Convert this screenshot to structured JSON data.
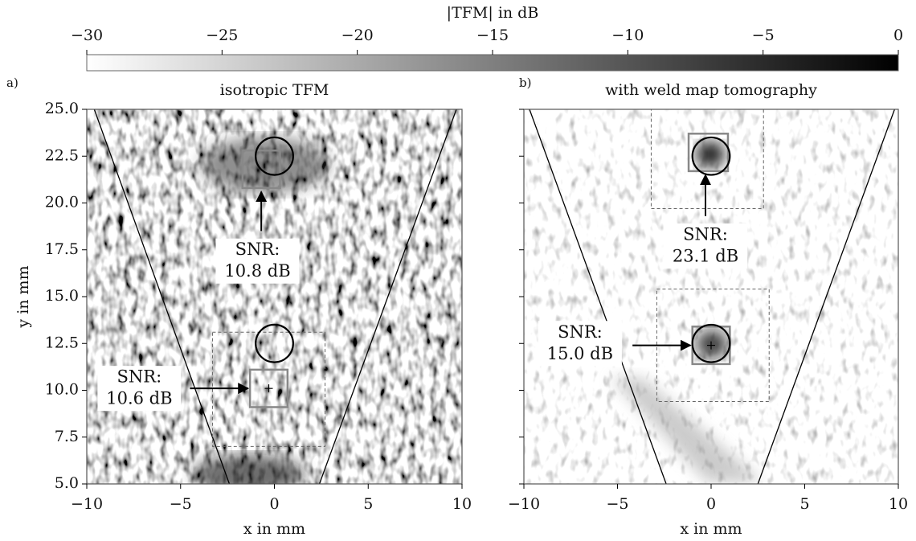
{
  "colorbar": {
    "label": "|TFM| in dB",
    "lim": [
      -30,
      0
    ],
    "ticks": [
      {
        "value": -30,
        "label": "−30"
      },
      {
        "value": -25,
        "label": "−25"
      },
      {
        "value": -20,
        "label": "−20"
      },
      {
        "value": -15,
        "label": "−15"
      },
      {
        "value": -10,
        "label": "−10"
      },
      {
        "value": -5,
        "label": "−5"
      },
      0
    ]
  },
  "chart_data": [
    {
      "type": "image",
      "label": "a)",
      "title": "isotropic TFM",
      "xlabel": "x in mm",
      "ylabel": "y in mm",
      "xlim": [
        -10,
        10
      ],
      "ylim": [
        5,
        25
      ],
      "xticks": [
        {
          "value": -10,
          "label": "−10"
        },
        {
          "value": -5,
          "label": "−5"
        },
        0,
        5,
        10
      ],
      "yticks": [
        {
          "value": 5,
          "label": "5.0"
        },
        {
          "value": 7.5,
          "label": "7.5"
        },
        {
          "value": 10,
          "label": "10.0"
        },
        {
          "value": 12.5,
          "label": "12.5"
        },
        {
          "value": 15,
          "label": "15.0"
        },
        {
          "value": 17.5,
          "label": "17.5"
        },
        {
          "value": 20,
          "label": "20.0"
        },
        {
          "value": 22.5,
          "label": "22.5"
        },
        {
          "value": 25,
          "label": "25.0"
        }
      ],
      "lines": [
        {
          "x": [
            -9.6,
            -2.4
          ],
          "y": [
            25,
            5
          ]
        },
        {
          "x": [
            9.7,
            2.4
          ],
          "y": [
            25,
            5
          ]
        }
      ],
      "circles": [
        {
          "x": 0,
          "y": 22.5,
          "r": 1
        },
        {
          "x": 0,
          "y": 12.5,
          "r": 1
        }
      ],
      "boxes": [
        {
          "x": [
            -3.3,
            2.7
          ],
          "y": [
            13.1,
            7.0
          ],
          "style": "dashed"
        },
        {
          "x": [
            -1.7,
            0.3
          ],
          "y": [
            22.8,
            20.8
          ],
          "style": "solid"
        },
        {
          "x": [
            -1.3,
            0.7
          ],
          "y": [
            11.1,
            9.1
          ],
          "style": "solid"
        }
      ],
      "markers": [
        {
          "x": -0.3,
          "y": 10.1
        }
      ],
      "annotations": [
        {
          "text": [
            "SNR:",
            "10.8 dB"
          ],
          "x": -0.9,
          "y": 16.9,
          "arrow": {
            "x": [
              -0.7,
              -0.7
            ],
            "y": [
              18.5,
              20.6
            ]
          }
        },
        {
          "text": [
            "SNR:",
            "10.6 dB"
          ],
          "x": -7.2,
          "y": 10.1,
          "arrow": {
            "x": [
              -4.5,
              -1.4
            ],
            "y": [
              10.1,
              10.1
            ]
          }
        }
      ]
    },
    {
      "type": "image",
      "label": "b)",
      "title": "with weld map tomography",
      "xlabel": "x in mm",
      "xlim": [
        -10,
        10
      ],
      "ylim": [
        5,
        25
      ],
      "xticks": [
        {
          "value": -10,
          "label": "−10"
        },
        {
          "value": -5,
          "label": "−5"
        },
        0,
        5,
        10
      ],
      "yticks": [
        5,
        7.5,
        10,
        12.5,
        15,
        17.5,
        20,
        22.5,
        25
      ],
      "lines": [
        {
          "x": [
            -9.7,
            -2.4
          ],
          "y": [
            25,
            5
          ]
        },
        {
          "x": [
            9.8,
            2.5
          ],
          "y": [
            25,
            5
          ]
        }
      ],
      "circles": [
        {
          "x": 0,
          "y": 22.5,
          "r": 1
        },
        {
          "x": 0,
          "y": 12.5,
          "r": 1
        }
      ],
      "boxes": [
        {
          "x": [
            -3.2,
            2.8
          ],
          "y": [
            25,
            19.7
          ],
          "style": "dashed"
        },
        {
          "x": [
            -2.9,
            3.1
          ],
          "y": [
            15.4,
            9.4
          ],
          "style": "dashed"
        },
        {
          "x": [
            -1.2,
            0.9
          ],
          "y": [
            23.7,
            21.7
          ],
          "style": "solid"
        },
        {
          "x": [
            -1.0,
            1.0
          ],
          "y": [
            13.4,
            11.4
          ],
          "style": "solid"
        }
      ],
      "markers": [
        {
          "x": 0,
          "y": 12.4
        }
      ],
      "annotations": [
        {
          "text": [
            "SNR:",
            "23.1 dB"
          ],
          "x": -0.3,
          "y": 17.7,
          "arrow": {
            "x": [
              -0.3,
              -0.3
            ],
            "y": [
              19.3,
              21.5
            ]
          }
        },
        {
          "text": [
            "SNR:",
            "15.0 dB"
          ],
          "x": -7.0,
          "y": 12.5,
          "arrow": {
            "x": [
              -4.2,
              -1.1
            ],
            "y": [
              12.4,
              12.4
            ]
          }
        }
      ]
    }
  ]
}
